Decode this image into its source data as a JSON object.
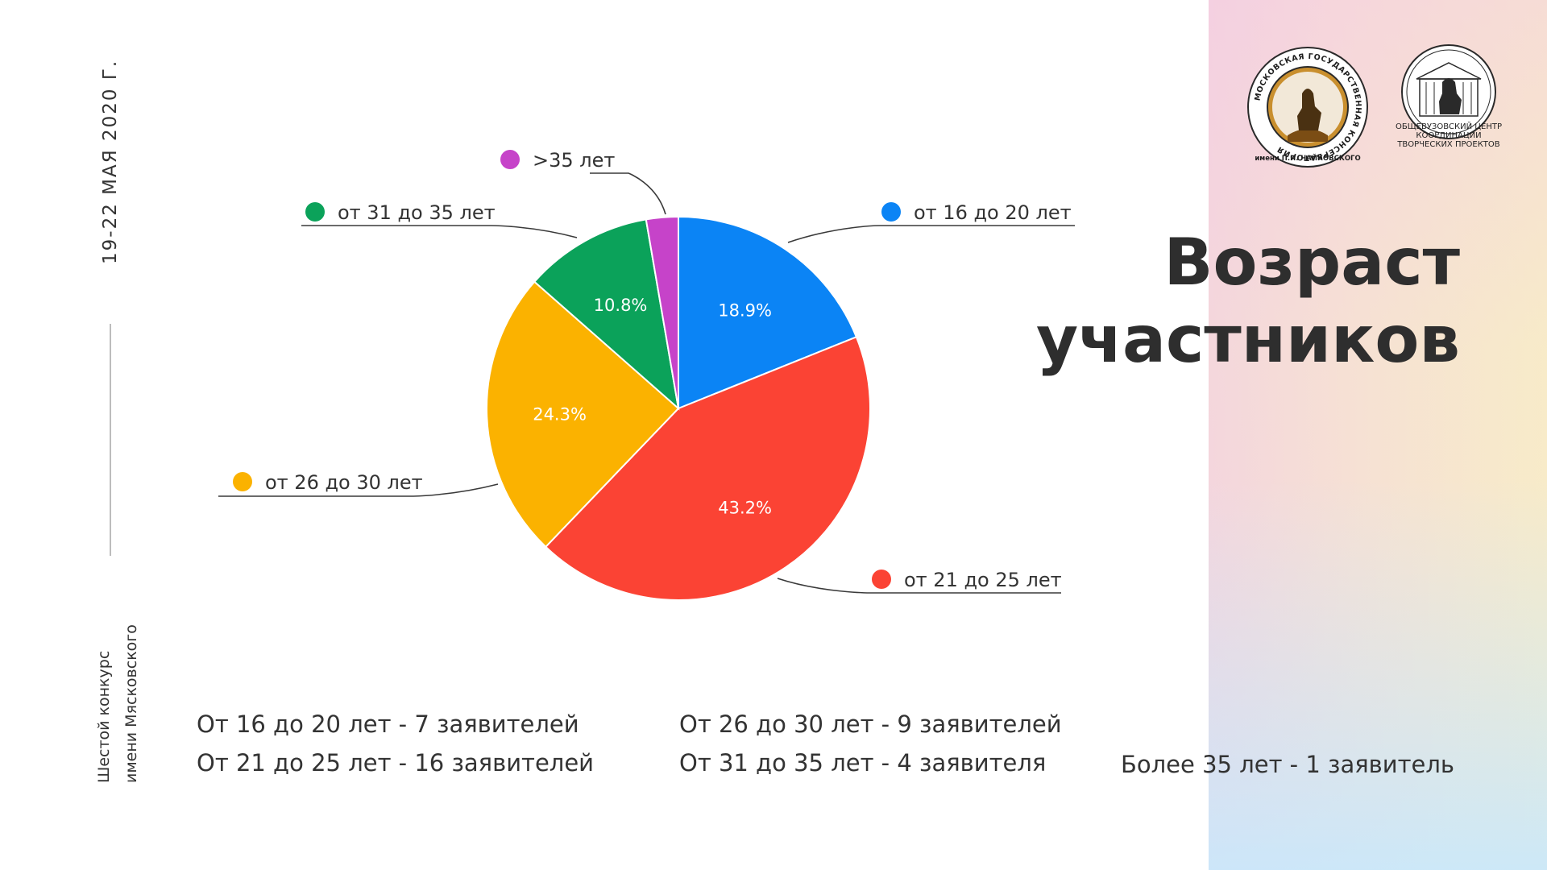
{
  "slide": {
    "date": "19-22 МАЯ 2020 Г.",
    "contest_line1": "Шестой конкурс",
    "contest_line2": "имени Мясковского",
    "title_line1": "Возраст",
    "title_line2": "участников"
  },
  "logos": {
    "conservatory_ring_text": "МОСКОВСКАЯ ГОСУДАРСТВЕННАЯ КОНСЕРВАТОРИЯ",
    "conservatory_bottom_text": "имени П.И. ЧАЙКОВСКОГО",
    "center_line1": "ОБЩЕВУЗОВСКИЙ ЦЕНТР",
    "center_line2": "КООРДИНАЦИИ",
    "center_line3": "ТВОРЧЕСКИХ ПРОЕКТОВ"
  },
  "stats": {
    "s1": "От 16 до 20 лет - 7 заявителей",
    "s2": "От 21 до 25 лет - 16 заявителей",
    "s3": "От 26 до 30 лет - 9 заявителей",
    "s4": "От 31 до 35 лет - 4 заявителя",
    "s5": "Более 35 лет - 1 заявитель"
  },
  "chart_data": {
    "type": "pie",
    "start_angle_deg": 0,
    "direction": "clockwise",
    "legend": "callout labels",
    "slices": [
      {
        "label": "от 16 до 20 лет",
        "value": 18.9,
        "pct_label": "18.9%",
        "color": "#0b84f5"
      },
      {
        "label": "от 21 до 25 лет",
        "value": 43.2,
        "pct_label": "43.2%",
        "color": "#fb4334"
      },
      {
        "label": "от 26 до 30 лет",
        "value": 24.3,
        "pct_label": "24.3%",
        "color": "#fbb200"
      },
      {
        "label": "от 31 до 35 лет",
        "value": 10.8,
        "pct_label": "10.8%",
        "color": "#0ba25a"
      },
      {
        "label": ">35 лет",
        "value": 2.7,
        "pct_label": "",
        "color": "#c643c9"
      }
    ]
  }
}
